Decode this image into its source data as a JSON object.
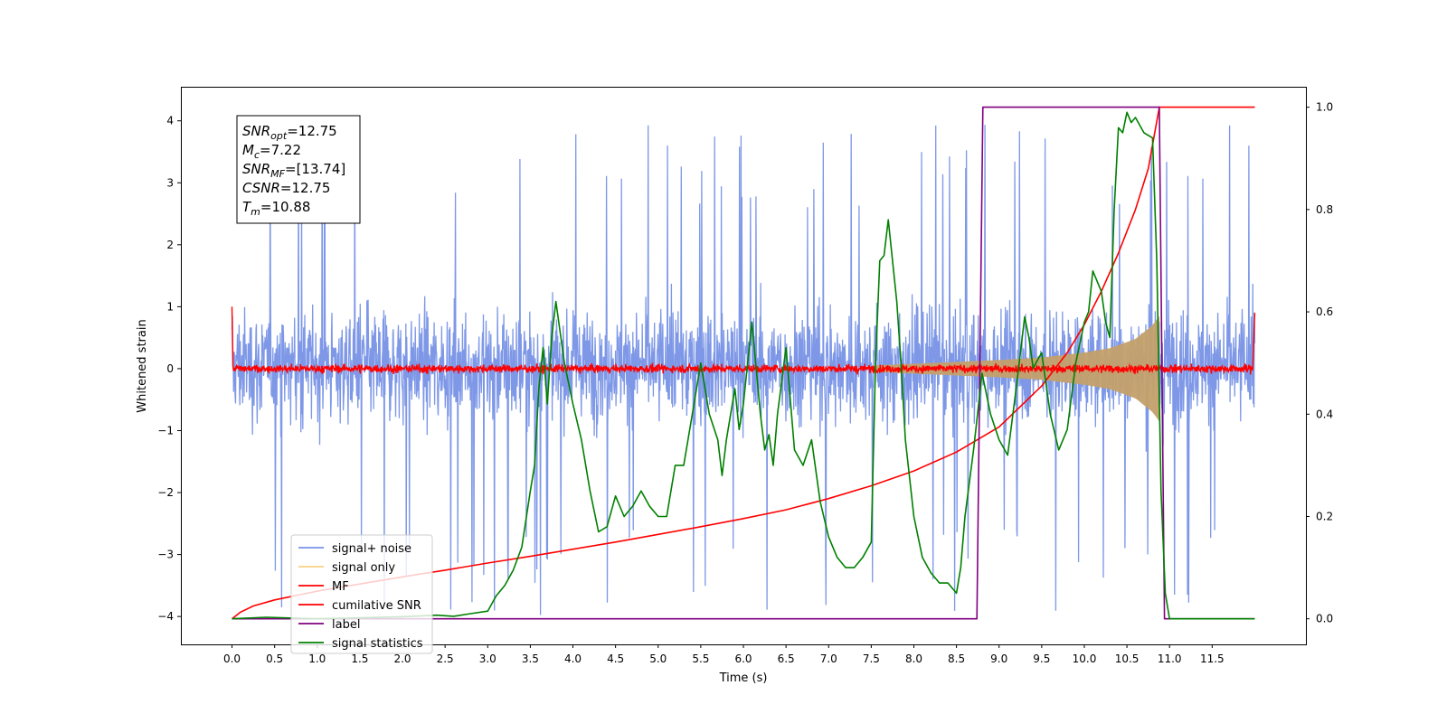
{
  "chart_data": {
    "type": "line",
    "xlabel": "Time (s)",
    "ylabel": "Whitened strain",
    "xlim": [
      -0.6,
      12.6
    ],
    "ylim": [
      -4.45,
      4.55
    ],
    "ylim_right": [
      -0.05,
      1.04
    ],
    "x_ticks": [
      0.0,
      0.5,
      1.0,
      1.5,
      2.0,
      2.5,
      3.0,
      3.5,
      4.0,
      4.5,
      5.0,
      5.5,
      6.0,
      6.5,
      7.0,
      7.5,
      8.0,
      8.5,
      9.0,
      9.5,
      10.0,
      10.5,
      11.0,
      11.5
    ],
    "x_tick_labels": [
      "0.0",
      "0.5",
      "1.0",
      "1.5",
      "2.0",
      "2.5",
      "3.0",
      "3.5",
      "4.0",
      "4.5",
      "5.0",
      "5.5",
      "6.0",
      "6.5",
      "7.0",
      "7.5",
      "8.0",
      "8.5",
      "9.0",
      "9.5",
      "10.0",
      "10.5",
      "11.0",
      "11.5"
    ],
    "y_ticks": [
      4,
      3,
      2,
      1,
      0,
      -1,
      -2,
      -3,
      -4
    ],
    "y_tick_labels": [
      "4",
      "3",
      "2",
      "1",
      "0",
      "−1",
      "−2",
      "−3",
      "−4"
    ],
    "y_right_ticks": [
      1.0,
      0.8,
      0.6,
      0.4,
      0.2,
      0.0
    ],
    "y_right_tick_labels": [
      "1.0",
      "0.8",
      "0.6",
      "0.4",
      "0.2",
      "0.0"
    ],
    "grid": false,
    "legend_position": "lower-left",
    "annotation": {
      "lines": [
        {
          "base": "SNR",
          "sub": "opt",
          "value": "=12.75"
        },
        {
          "base": "M",
          "sub": "c",
          "value": "=7.22"
        },
        {
          "base": "SNR",
          "sub": "MF",
          "value": "=[13.74]"
        },
        {
          "base": "CSNR",
          "sub": "",
          "value": "=12.75"
        },
        {
          "base": "T",
          "sub": "m",
          "value": "=10.88"
        }
      ]
    },
    "series": [
      {
        "name": "signal+ noise",
        "color": "#7792e6",
        "axis": "left",
        "style": "noise band",
        "x_range": [
          0.0,
          12.0
        ],
        "typical_range": [
          -1.7,
          1.9
        ],
        "extreme_range": [
          -4.0,
          4.17
        ]
      },
      {
        "name": "signal only",
        "color": "#f5c25a",
        "axis": "left",
        "style": "chirp envelope",
        "x_range": [
          7.5,
          10.9
        ],
        "envelope": {
          "x": [
            7.5,
            8.0,
            8.5,
            9.0,
            9.5,
            10.0,
            10.3,
            10.6,
            10.8,
            10.88
          ],
          "amp": [
            0.05,
            0.08,
            0.11,
            0.14,
            0.18,
            0.26,
            0.33,
            0.48,
            0.7,
            0.85
          ]
        }
      },
      {
        "name": "MF",
        "color": "#ff0000",
        "axis": "left",
        "style": "noise band",
        "x_range": [
          0.0,
          12.0
        ],
        "typical_range": [
          -0.1,
          0.12
        ],
        "start_value": 1.0,
        "end_value": 0.9
      },
      {
        "name": "cumilative SNR",
        "color": "#ff0000",
        "axis": "right",
        "x": [
          0.0,
          0.1,
          0.25,
          0.5,
          1.0,
          1.5,
          2.0,
          2.5,
          3.0,
          3.5,
          4.0,
          4.5,
          5.0,
          5.5,
          6.0,
          6.5,
          7.0,
          7.5,
          8.0,
          8.5,
          9.0,
          9.5,
          9.8,
          10.0,
          10.2,
          10.4,
          10.6,
          10.75,
          10.88,
          11.0,
          12.0
        ],
        "y": [
          0.0,
          0.013,
          0.025,
          0.037,
          0.054,
          0.068,
          0.082,
          0.095,
          0.109,
          0.122,
          0.136,
          0.15,
          0.165,
          0.18,
          0.196,
          0.213,
          0.235,
          0.26,
          0.289,
          0.326,
          0.375,
          0.455,
          0.52,
          0.575,
          0.64,
          0.715,
          0.8,
          0.88,
          1.0,
          1.0,
          1.0
        ]
      },
      {
        "name": "label",
        "color": "#800080",
        "axis": "right",
        "x": [
          0.0,
          8.74,
          8.81,
          10.88,
          10.94,
          12.0
        ],
        "y": [
          0.0,
          0.0,
          1.0,
          1.0,
          0.0,
          0.0
        ]
      },
      {
        "name": "signal statistics",
        "color": "#008000",
        "axis": "right",
        "x": [
          0.0,
          0.4,
          1.0,
          1.5,
          2.0,
          2.4,
          2.6,
          2.8,
          3.0,
          3.1,
          3.2,
          3.3,
          3.4,
          3.5,
          3.55,
          3.6,
          3.65,
          3.7,
          3.75,
          3.8,
          3.85,
          3.9,
          3.95,
          4.0,
          4.1,
          4.2,
          4.3,
          4.4,
          4.5,
          4.6,
          4.7,
          4.8,
          4.9,
          5.0,
          5.1,
          5.2,
          5.3,
          5.4,
          5.5,
          5.6,
          5.7,
          5.75,
          5.8,
          5.85,
          5.9,
          5.95,
          6.0,
          6.05,
          6.1,
          6.2,
          6.25,
          6.3,
          6.35,
          6.4,
          6.5,
          6.6,
          6.7,
          6.8,
          6.9,
          7.0,
          7.1,
          7.2,
          7.3,
          7.4,
          7.5,
          7.55,
          7.6,
          7.65,
          7.7,
          7.8,
          7.85,
          7.9,
          8.0,
          8.1,
          8.2,
          8.3,
          8.4,
          8.5,
          8.55,
          8.6,
          8.7,
          8.8,
          8.9,
          9.0,
          9.1,
          9.2,
          9.3,
          9.35,
          9.4,
          9.5,
          9.6,
          9.7,
          9.8,
          9.9,
          10.0,
          10.05,
          10.1,
          10.2,
          10.25,
          10.3,
          10.35,
          10.4,
          10.45,
          10.5,
          10.55,
          10.6,
          10.7,
          10.8,
          10.85,
          10.9,
          10.95,
          11.0,
          11.5,
          12.0
        ],
        "y": [
          0.0,
          0.003,
          0.0,
          0.002,
          0.004,
          0.007,
          0.005,
          0.01,
          0.015,
          0.045,
          0.065,
          0.095,
          0.14,
          0.25,
          0.3,
          0.45,
          0.53,
          0.42,
          0.55,
          0.62,
          0.56,
          0.5,
          0.46,
          0.42,
          0.35,
          0.25,
          0.17,
          0.18,
          0.24,
          0.2,
          0.22,
          0.25,
          0.22,
          0.2,
          0.2,
          0.3,
          0.3,
          0.4,
          0.5,
          0.4,
          0.35,
          0.28,
          0.35,
          0.4,
          0.45,
          0.37,
          0.42,
          0.5,
          0.58,
          0.4,
          0.33,
          0.36,
          0.3,
          0.4,
          0.53,
          0.33,
          0.3,
          0.35,
          0.23,
          0.16,
          0.12,
          0.1,
          0.1,
          0.12,
          0.15,
          0.5,
          0.7,
          0.71,
          0.78,
          0.62,
          0.5,
          0.35,
          0.2,
          0.12,
          0.09,
          0.07,
          0.07,
          0.05,
          0.1,
          0.2,
          0.33,
          0.48,
          0.4,
          0.35,
          0.32,
          0.45,
          0.59,
          0.55,
          0.49,
          0.52,
          0.4,
          0.33,
          0.37,
          0.5,
          0.58,
          0.6,
          0.68,
          0.64,
          0.58,
          0.55,
          0.8,
          0.96,
          0.95,
          0.99,
          0.97,
          0.98,
          0.95,
          0.94,
          0.7,
          0.25,
          0.05,
          0.0,
          0.0,
          0.0
        ]
      }
    ]
  }
}
